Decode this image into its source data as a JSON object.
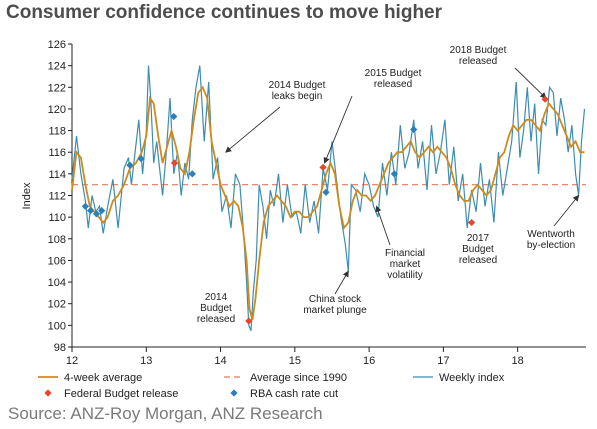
{
  "title": "Consumer confidence continues to move higher",
  "source": "Source: ANZ-Roy Morgan, ANZ Research",
  "chart_data": {
    "type": "line",
    "ylabel": "Index",
    "ylim": [
      98,
      126
    ],
    "yticks": [
      98,
      100,
      102,
      104,
      106,
      108,
      110,
      112,
      114,
      116,
      118,
      120,
      122,
      124,
      126
    ],
    "xlim": [
      12,
      18.92
    ],
    "xticks": [
      12,
      13,
      14,
      15,
      16,
      17,
      18
    ],
    "grid": false,
    "legend_position": "bottom",
    "colors": {
      "weekly": "#3c8db0",
      "avg4": "#d08a1c",
      "longrun": "#e07a5f",
      "budget": "#e8452c",
      "rba": "#2c7fb8"
    },
    "series": [
      {
        "name": "Weekly index",
        "x": [
          12.0,
          12.06,
          12.12,
          12.18,
          12.22,
          12.27,
          12.32,
          12.37,
          12.42,
          12.48,
          12.55,
          12.62,
          12.7,
          12.76,
          12.8,
          12.85,
          12.9,
          12.95,
          13.0,
          13.03,
          13.06,
          13.1,
          13.14,
          13.18,
          13.22,
          13.27,
          13.32,
          13.37,
          13.42,
          13.47,
          13.52,
          13.57,
          13.62,
          13.67,
          13.72,
          13.78,
          13.84,
          13.9,
          13.96,
          14.02,
          14.08,
          14.14,
          14.2,
          14.26,
          14.31,
          14.35,
          14.38,
          14.41,
          14.44,
          14.48,
          14.52,
          14.57,
          14.62,
          14.67,
          14.72,
          14.78,
          14.84,
          14.9,
          14.96,
          15.02,
          15.08,
          15.14,
          15.2,
          15.26,
          15.32,
          15.38,
          15.44,
          15.5,
          15.56,
          15.62,
          15.68,
          15.72,
          15.76,
          15.82,
          15.88,
          15.94,
          16.0,
          16.06,
          16.12,
          16.18,
          16.24,
          16.3,
          16.36,
          16.42,
          16.48,
          16.54,
          16.6,
          16.66,
          16.72,
          16.78,
          16.84,
          16.9,
          16.96,
          17.02,
          17.08,
          17.14,
          17.2,
          17.26,
          17.32,
          17.38,
          17.44,
          17.5,
          17.56,
          17.62,
          17.68,
          17.74,
          17.8,
          17.86,
          17.92,
          17.98,
          18.03,
          18.08,
          18.13,
          18.18,
          18.23,
          18.28,
          18.33,
          18.38,
          18.43,
          18.48,
          18.53,
          18.58,
          18.63,
          18.68,
          18.73,
          18.78,
          18.82,
          18.86,
          18.9
        ],
        "values": [
          113.5,
          117.5,
          114.0,
          111.5,
          109.0,
          112.0,
          110.5,
          111.0,
          108.5,
          111.0,
          113.5,
          109.0,
          114.5,
          115.5,
          113.0,
          116.0,
          119.0,
          114.0,
          118.0,
          124.0,
          121.0,
          115.0,
          117.0,
          114.5,
          112.0,
          116.0,
          121.0,
          114.0,
          116.0,
          112.0,
          115.0,
          113.5,
          119.0,
          122.0,
          124.0,
          117.0,
          122.5,
          113.5,
          115.5,
          110.5,
          112.0,
          109.0,
          114.0,
          113.0,
          108.5,
          104.0,
          100.0,
          99.5,
          103.0,
          106.0,
          113.0,
          111.0,
          108.0,
          112.5,
          111.0,
          114.0,
          109.5,
          113.0,
          110.0,
          110.5,
          108.5,
          113.0,
          109.5,
          111.5,
          108.5,
          114.5,
          112.5,
          117.0,
          113.5,
          110.0,
          107.5,
          105.0,
          113.0,
          112.5,
          110.5,
          114.0,
          113.0,
          111.0,
          110.0,
          115.0,
          112.0,
          116.0,
          113.0,
          118.5,
          114.5,
          116.0,
          119.0,
          114.5,
          117.0,
          112.5,
          118.5,
          114.0,
          116.0,
          119.0,
          113.0,
          116.5,
          111.5,
          114.0,
          109.0,
          112.5,
          110.5,
          115.0,
          111.0,
          113.5,
          109.5,
          116.0,
          112.0,
          114.5,
          117.0,
          122.5,
          115.5,
          118.0,
          122.0,
          117.0,
          120.5,
          114.0,
          119.0,
          118.5,
          122.0,
          121.5,
          117.5,
          121.0,
          119.0,
          116.0,
          118.5,
          114.0,
          112.0,
          117.0,
          120.0
        ]
      },
      {
        "name": "4-week average",
        "x": [
          12.0,
          12.06,
          12.12,
          12.18,
          12.24,
          12.3,
          12.36,
          12.42,
          12.48,
          12.55,
          12.62,
          12.7,
          12.78,
          12.86,
          12.94,
          13.0,
          13.05,
          13.1,
          13.16,
          13.22,
          13.28,
          13.34,
          13.4,
          13.46,
          13.52,
          13.58,
          13.64,
          13.7,
          13.76,
          13.82,
          13.88,
          13.94,
          14.0,
          14.06,
          14.12,
          14.18,
          14.24,
          14.3,
          14.35,
          14.39,
          14.43,
          14.47,
          14.52,
          14.58,
          14.64,
          14.7,
          14.76,
          14.82,
          14.88,
          14.94,
          15.0,
          15.06,
          15.12,
          15.18,
          15.24,
          15.3,
          15.36,
          15.42,
          15.48,
          15.54,
          15.6,
          15.66,
          15.72,
          15.78,
          15.84,
          15.9,
          15.96,
          16.02,
          16.08,
          16.14,
          16.2,
          16.26,
          16.32,
          16.38,
          16.44,
          16.5,
          16.56,
          16.62,
          16.68,
          16.74,
          16.8,
          16.86,
          16.92,
          16.98,
          17.04,
          17.1,
          17.16,
          17.22,
          17.28,
          17.34,
          17.4,
          17.46,
          17.52,
          17.58,
          17.64,
          17.7,
          17.76,
          17.82,
          17.88,
          17.94,
          18.0,
          18.06,
          18.12,
          18.18,
          18.24,
          18.3,
          18.36,
          18.42,
          18.48,
          18.54,
          18.6,
          18.66,
          18.72,
          18.78,
          18.84,
          18.9
        ],
        "values": [
          112.5,
          116.0,
          115.5,
          113.0,
          111.0,
          110.5,
          110.0,
          109.5,
          110.0,
          111.5,
          112.0,
          113.0,
          114.5,
          115.0,
          116.0,
          117.5,
          121.0,
          120.5,
          117.5,
          115.0,
          116.5,
          118.0,
          116.5,
          114.5,
          114.0,
          116.0,
          119.0,
          121.5,
          122.0,
          121.0,
          117.0,
          115.0,
          113.0,
          112.0,
          111.0,
          111.5,
          111.0,
          109.0,
          106.0,
          101.5,
          100.5,
          102.5,
          106.0,
          109.5,
          111.0,
          111.5,
          112.0,
          111.5,
          111.0,
          110.0,
          110.5,
          110.5,
          110.0,
          110.0,
          110.5,
          111.0,
          112.5,
          114.0,
          115.0,
          114.0,
          111.0,
          109.0,
          109.5,
          111.5,
          112.5,
          112.0,
          112.0,
          111.5,
          112.0,
          113.0,
          114.0,
          115.0,
          115.5,
          116.0,
          116.0,
          116.5,
          117.0,
          116.0,
          115.5,
          116.0,
          116.5,
          116.0,
          116.5,
          116.0,
          115.5,
          114.5,
          113.0,
          112.0,
          111.5,
          111.5,
          112.5,
          113.0,
          112.5,
          112.0,
          112.5,
          114.0,
          115.5,
          116.0,
          117.5,
          118.5,
          118.0,
          118.5,
          119.0,
          119.0,
          118.5,
          118.0,
          119.5,
          120.5,
          120.0,
          119.5,
          118.5,
          117.5,
          116.5,
          117.0,
          116.0,
          116.0
        ]
      },
      {
        "name": "Average since 1990",
        "values": [
          113.0
        ]
      },
      {
        "name": "Federal Budget release",
        "x": [
          13.38,
          14.38,
          15.38,
          17.38,
          18.37
        ],
        "values": [
          115.0,
          100.4,
          114.6,
          109.5,
          120.9
        ]
      },
      {
        "name": "RBA cash rate cut",
        "x": [
          12.18,
          12.25,
          12.33,
          12.4,
          12.78,
          12.93,
          13.37,
          13.62,
          15.42,
          16.34,
          16.6
        ],
        "values": [
          111.0,
          110.6,
          110.3,
          110.6,
          114.8,
          115.4,
          119.3,
          114.0,
          112.3,
          114.0,
          118.1
        ]
      }
    ],
    "annotations": [
      {
        "text": "2014 Budget\nleaks begin",
        "x": 14.07,
        "y": 116.0
      },
      {
        "text": "2015 Budget\nreleased",
        "x": 15.4,
        "y": 115.0
      },
      {
        "text": "2018 Budget\nreleased",
        "x": 18.38,
        "y": 121.0
      },
      {
        "text": "2014\nBudget\nreleased"
      },
      {
        "text": "China stock\nmarket plunge",
        "x": 15.72,
        "y": 105.0
      },
      {
        "text": "Financial\nmarket\nvolatility",
        "x": 16.1,
        "y": 111.0
      },
      {
        "text": "2017\nBudget\nreleased"
      },
      {
        "text": "Wentworth\nby-election",
        "x": 18.82,
        "y": 112.0
      }
    ]
  }
}
